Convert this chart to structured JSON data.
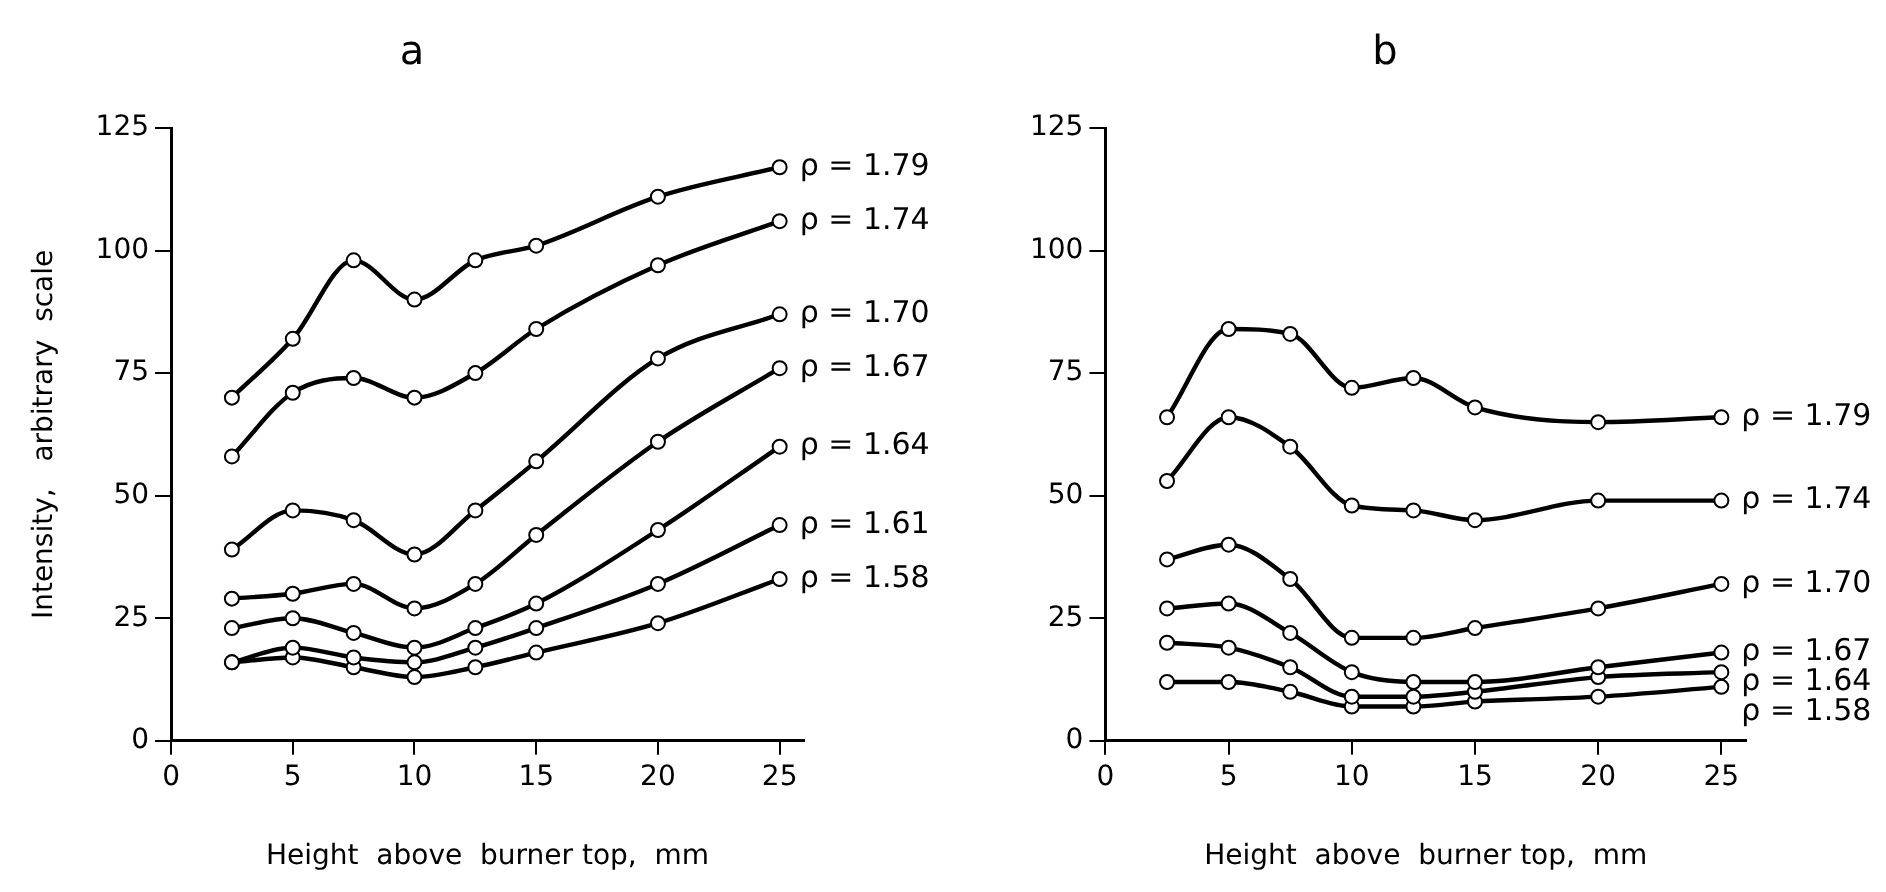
{
  "chart_data": [
    {
      "type": "line",
      "title": "a",
      "xlabel": "Height  above  burner top,  mm",
      "ylabel": "Intensity,   arbitrary  scale",
      "x": [
        2.5,
        5,
        7.5,
        10,
        12.5,
        15,
        20,
        25
      ],
      "xlim": [
        0,
        26
      ],
      "xticks": [
        0,
        5,
        10,
        15,
        20,
        25
      ],
      "ylim": [
        0,
        125
      ],
      "yticks": [
        0,
        25,
        50,
        75,
        100,
        125
      ],
      "grid": false,
      "legend": false,
      "marker": "circle",
      "line_style": "solid",
      "series": [
        {
          "name": "ρ = 1.79",
          "color": "#000000",
          "values": [
            70,
            82,
            98,
            90,
            98,
            101,
            111,
            117
          ]
        },
        {
          "name": "ρ = 1.74",
          "color": "#000000",
          "values": [
            58,
            71,
            74,
            70,
            75,
            84,
            97,
            106
          ]
        },
        {
          "name": "ρ = 1.70",
          "color": "#000000",
          "values": [
            39,
            47,
            45,
            38,
            47,
            57,
            78,
            87
          ]
        },
        {
          "name": "ρ = 1.67",
          "color": "#000000",
          "values": [
            29,
            30,
            32,
            27,
            32,
            42,
            61,
            76
          ]
        },
        {
          "name": "ρ = 1.64",
          "color": "#000000",
          "values": [
            23,
            25,
            22,
            19,
            23,
            28,
            43,
            60
          ]
        },
        {
          "name": "ρ = 1.61",
          "color": "#000000",
          "values": [
            16,
            19,
            17,
            16,
            19,
            23,
            32,
            44
          ]
        },
        {
          "name": "ρ = 1.58",
          "color": "#000000",
          "values": [
            16,
            17,
            15,
            13,
            15,
            18,
            24,
            33
          ]
        }
      ]
    },
    {
      "type": "line",
      "title": "b",
      "xlabel": "Height  above  burner top,  mm",
      "x": [
        2.5,
        5,
        7.5,
        10,
        12.5,
        15,
        20,
        25
      ],
      "xlim": [
        0,
        26
      ],
      "xticks": [
        0,
        5,
        10,
        15,
        20,
        25
      ],
      "ylim": [
        0,
        125
      ],
      "yticks": [
        0,
        25,
        50,
        75,
        100,
        125
      ],
      "grid": false,
      "legend": false,
      "marker": "circle",
      "line_style": "solid",
      "series": [
        {
          "name": "ρ = 1.79",
          "color": "#000000",
          "values": [
            66,
            84,
            83,
            72,
            74,
            68,
            65,
            66
          ]
        },
        {
          "name": "ρ = 1.74",
          "color": "#000000",
          "values": [
            53,
            66,
            60,
            48,
            47,
            45,
            49,
            49
          ]
        },
        {
          "name": "ρ = 1.70",
          "color": "#000000",
          "values": [
            37,
            40,
            33,
            21,
            21,
            23,
            27,
            32
          ]
        },
        {
          "name": "ρ = 1.67",
          "color": "#000000",
          "values": [
            27,
            28,
            22,
            14,
            12,
            12,
            15,
            18
          ]
        },
        {
          "name": "ρ = 1.64",
          "color": "#000000",
          "values": [
            20,
            19,
            15,
            9,
            9,
            10,
            13,
            14
          ]
        },
        {
          "name": "ρ = 1.58",
          "color": "#000000",
          "values": [
            12,
            12,
            10,
            7,
            7,
            8,
            9,
            11
          ]
        }
      ]
    }
  ]
}
